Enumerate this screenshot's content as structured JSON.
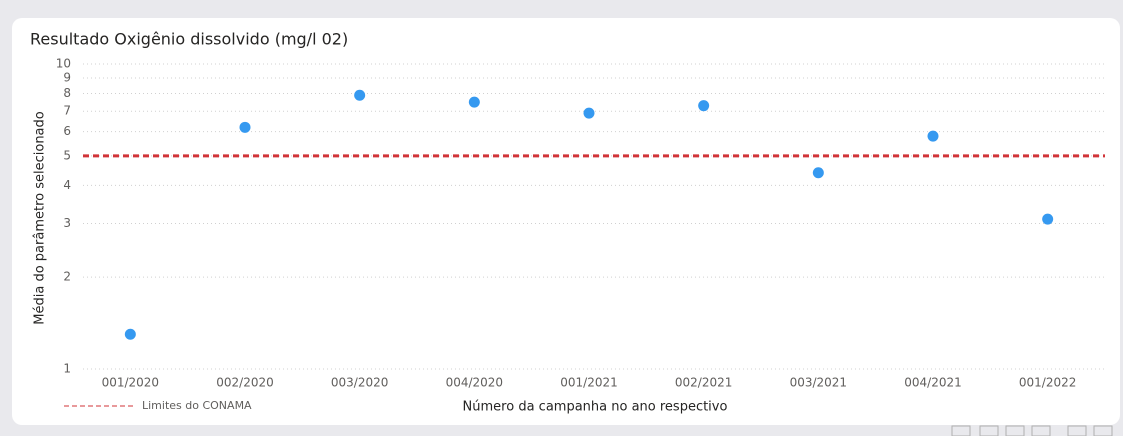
{
  "chart_data": {
    "type": "scatter",
    "title": "Resultado Oxigênio dissolvido (mg/l 02)",
    "x_label": "Número da campanha no ano respectivo",
    "y_label": "Média do parâmetro selecionado",
    "categories": [
      "001/2020",
      "002/2020",
      "003/2020",
      "004/2020",
      "001/2021",
      "002/2021",
      "003/2021",
      "004/2021",
      "001/2022"
    ],
    "series": [
      {
        "name": "Média do parâmetro selecionado",
        "color": "#3599f0",
        "values": [
          1.3,
          6.2,
          7.9,
          7.5,
          6.9,
          7.3,
          4.4,
          5.8,
          3.1
        ]
      }
    ],
    "ylim": [
      1,
      10
    ],
    "yticks": [
      1,
      2,
      3,
      4,
      5,
      6,
      7,
      8,
      9,
      10
    ],
    "yscale": "log",
    "grid": true,
    "reference_line": {
      "name": "Limites do CONAMA",
      "value": 5,
      "color": "#d13438"
    },
    "legend": "bottom-left"
  }
}
